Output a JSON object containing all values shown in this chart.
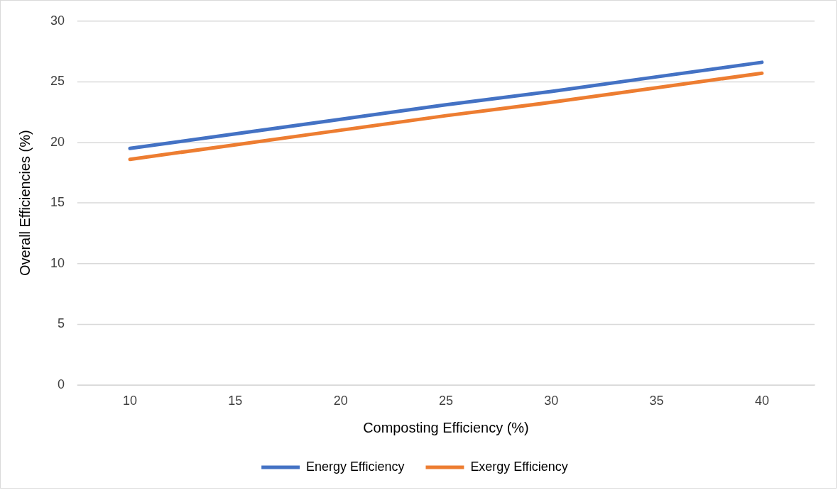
{
  "chart_data": {
    "type": "line",
    "xlabel": "Composting Efficiency (%)",
    "ylabel": "Overall Efficiencies (%)",
    "categories": [
      "10",
      "15",
      "20",
      "25",
      "30",
      "35",
      "40"
    ],
    "series": [
      {
        "name": "Energy Efficiency",
        "color": "#4472c4",
        "values": [
          19.5,
          20.7,
          21.9,
          23.1,
          24.2,
          25.4,
          26.6
        ]
      },
      {
        "name": "Exergy Efficiency",
        "color": "#ed7d31",
        "values": [
          18.6,
          19.8,
          21.0,
          22.2,
          23.3,
          24.5,
          25.7
        ]
      }
    ],
    "ylim": [
      0,
      30
    ],
    "yticks": [
      0,
      5,
      10,
      15,
      20,
      25,
      30
    ],
    "grid": "y",
    "legend": "bottom",
    "marker": "none",
    "line_style": "solid"
  }
}
